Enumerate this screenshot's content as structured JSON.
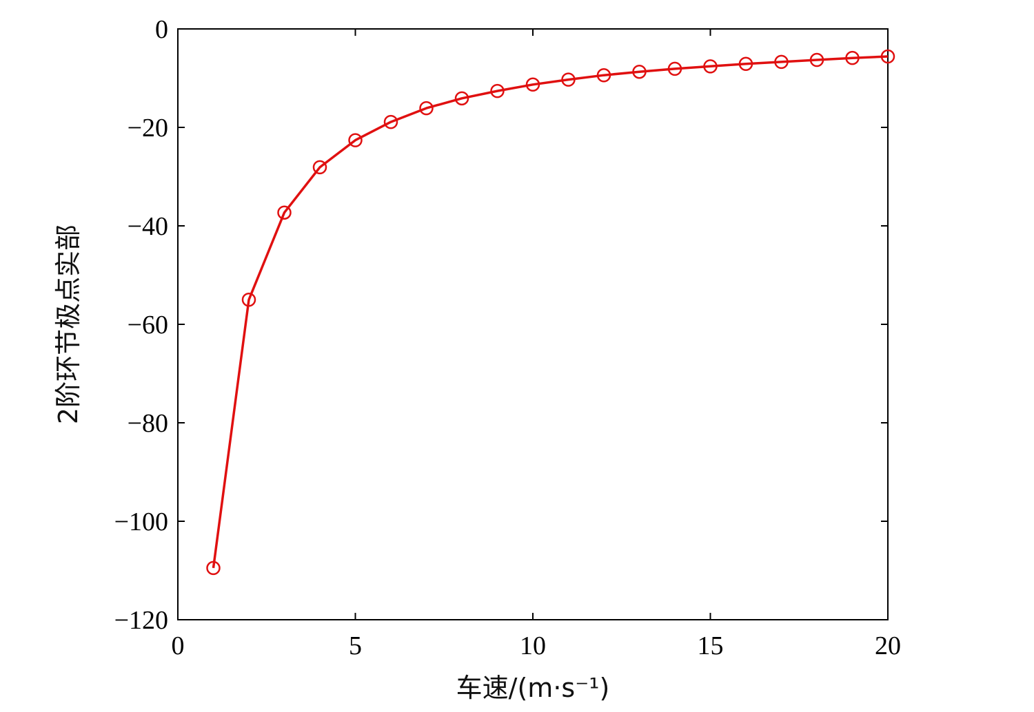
{
  "chart_data": {
    "type": "line",
    "xlabel": "车速/(m·s⁻¹)",
    "ylabel": "2阶环节极点实部",
    "xlim": [
      0,
      20
    ],
    "ylim": [
      -120,
      0
    ],
    "x_ticks": [
      0,
      5,
      10,
      15,
      20
    ],
    "y_ticks": [
      0,
      -20,
      -40,
      -60,
      -80,
      -100,
      -120
    ],
    "x_tick_labels": [
      "0",
      "5",
      "10",
      "15",
      "20"
    ],
    "y_tick_labels": [
      "0",
      "−20",
      "−40",
      "−60",
      "−80",
      "−100",
      "−120"
    ],
    "grid": false,
    "legend": "none",
    "series": [
      {
        "color": "#e01010",
        "marker": "open-circle",
        "x": [
          1,
          2,
          3,
          4,
          5,
          6,
          7,
          8,
          9,
          10,
          11,
          12,
          13,
          14,
          15,
          16,
          17,
          18,
          19,
          20
        ],
        "y": [
          -109.5,
          -55.0,
          -37.3,
          -28.1,
          -22.6,
          -18.9,
          -16.1,
          -14.1,
          -12.6,
          -11.3,
          -10.3,
          -9.4,
          -8.7,
          -8.1,
          -7.6,
          -7.1,
          -6.7,
          -6.3,
          -5.9,
          -5.6
        ]
      }
    ]
  }
}
